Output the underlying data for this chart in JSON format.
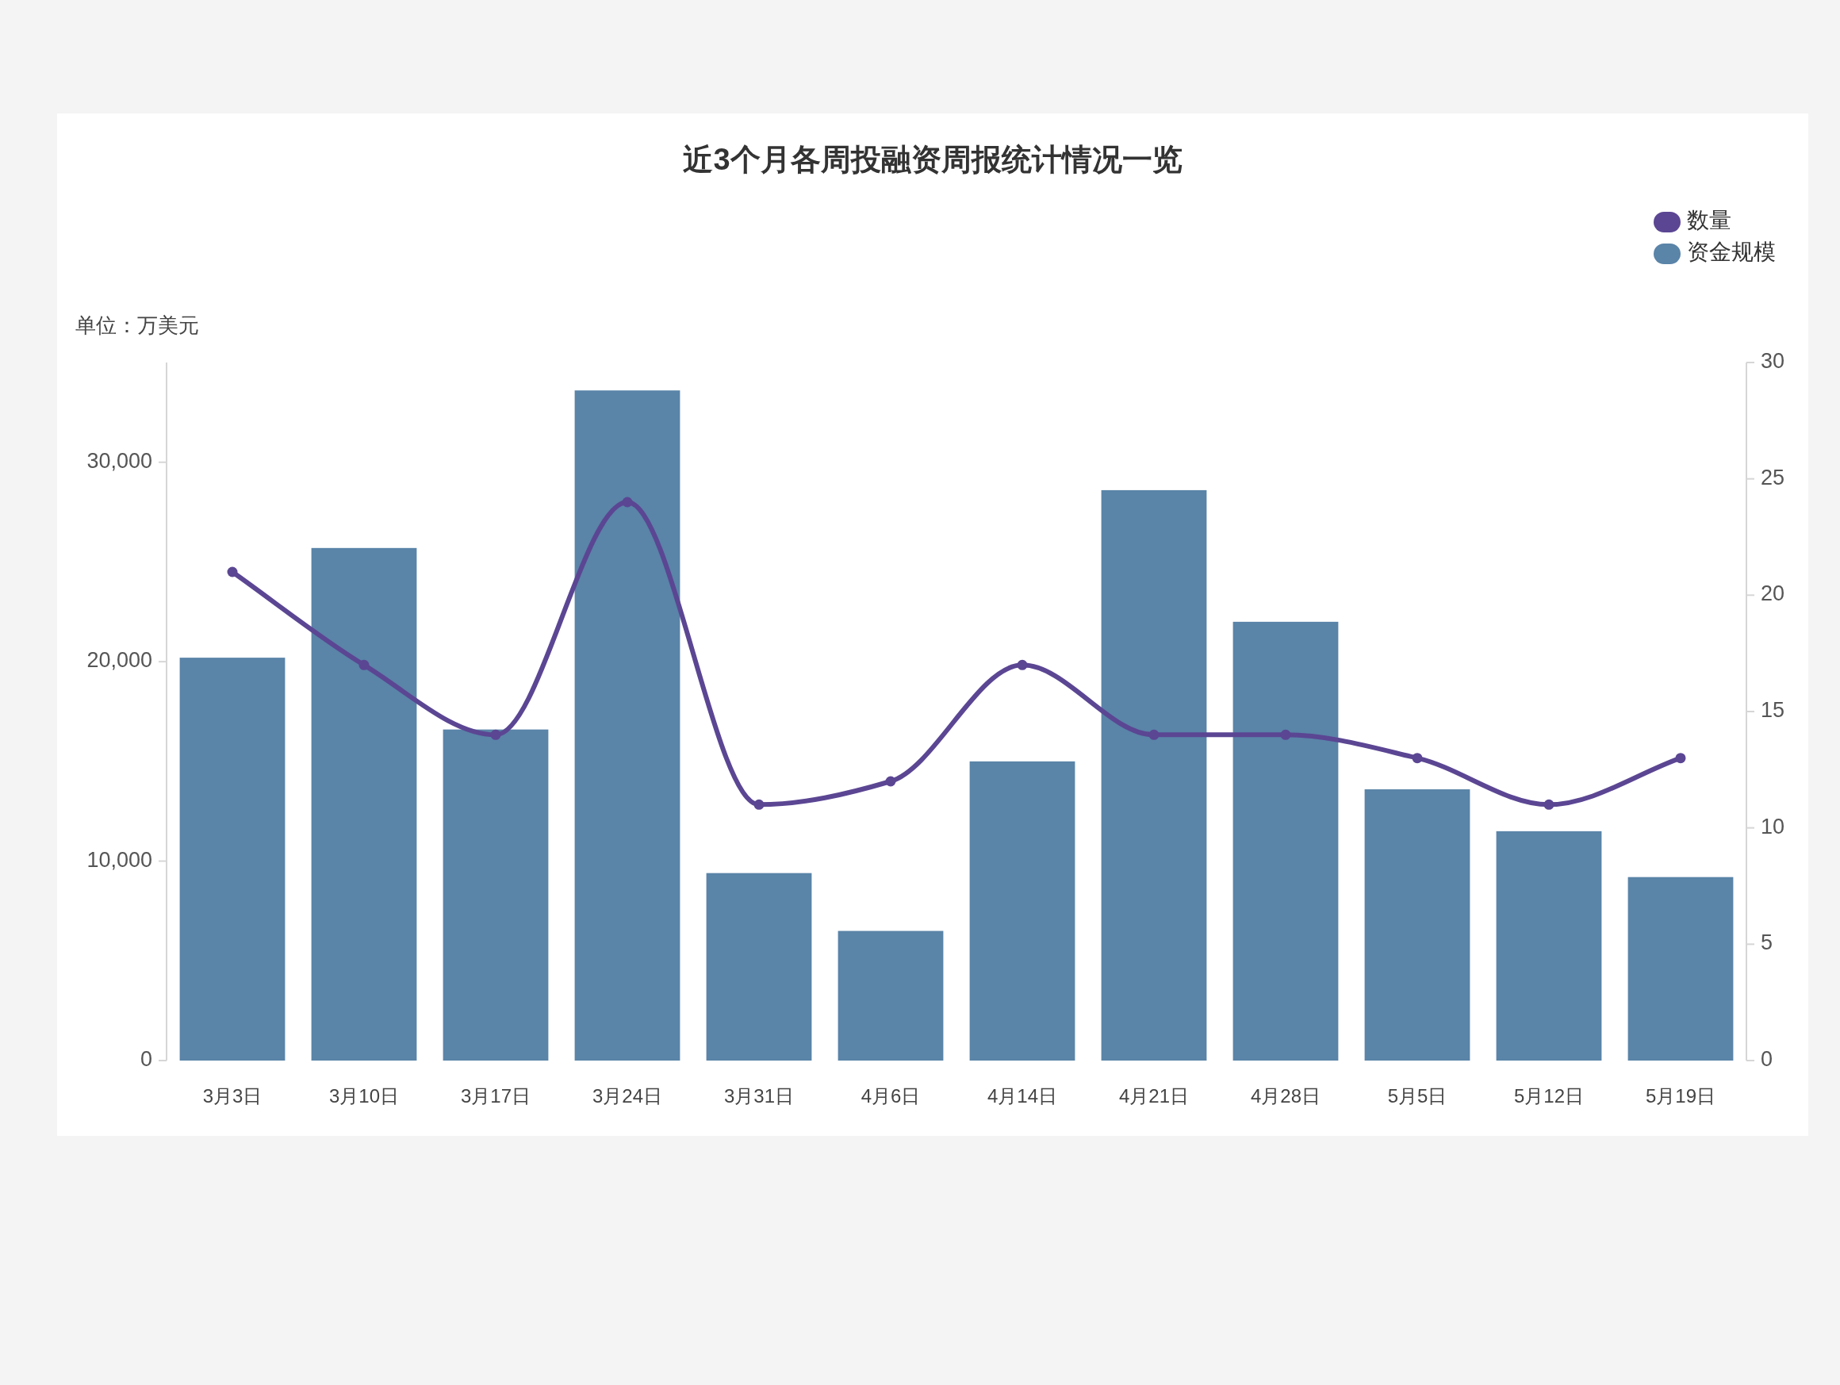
{
  "chart_data": {
    "type": "bar",
    "title": "近3个月各周投融资周报统计情况一览",
    "ylabel": "单位：万美元",
    "categories": [
      "3月3日",
      "3月10日",
      "3月17日",
      "3月24日",
      "3月31日",
      "4月6日",
      "4月14日",
      "4月21日",
      "4月28日",
      "5月5日",
      "5月12日",
      "5月19日"
    ],
    "series": [
      {
        "name": "数量",
        "type": "line",
        "axis": "y2",
        "color": "#5b4693",
        "values": [
          21,
          17,
          14,
          24,
          11,
          12,
          17,
          14,
          14,
          13,
          11,
          13
        ]
      },
      {
        "name": "资金规模",
        "color": "#5a84a8",
        "values": [
          20200,
          25700,
          16600,
          33600,
          9400,
          6500,
          15000,
          28600,
          22000,
          13600,
          11500,
          9200
        ]
      }
    ],
    "ylim": [
      0,
      35000
    ],
    "yticks": [
      0,
      {
        "value": 10000,
        "label": "10,000"
      },
      {
        "value": 20000,
        "label": "20,000"
      },
      {
        "value": 30000,
        "label": "30,000"
      }
    ],
    "y2lim": [
      0,
      30
    ],
    "y2ticks": [
      0,
      5,
      10,
      15,
      20,
      25,
      30
    ],
    "marker": "circle",
    "legend": "top right"
  }
}
